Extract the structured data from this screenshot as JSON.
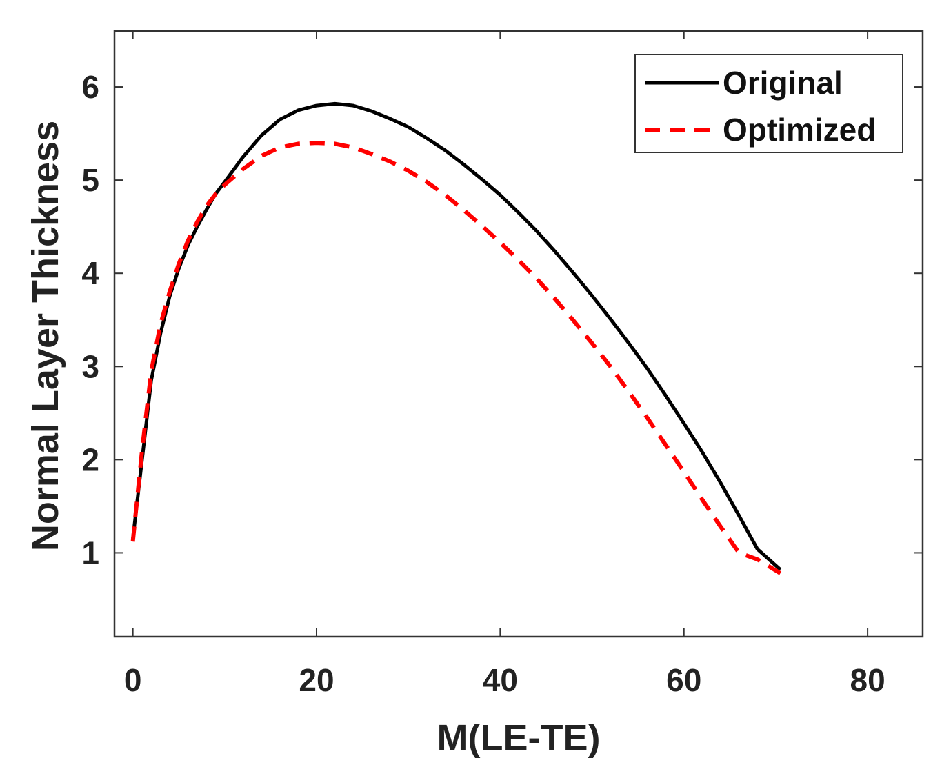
{
  "chart_data": {
    "type": "line",
    "title": "",
    "xlabel": "M(LE-TE)",
    "ylabel": "Normal Layer Thickness",
    "xlim": [
      -2,
      86
    ],
    "ylim": [
      0.1,
      6.6
    ],
    "xticks": [
      0,
      20,
      40,
      60,
      80
    ],
    "yticks": [
      1,
      2,
      3,
      4,
      5,
      6
    ],
    "xtick_labels": [
      "0",
      "20",
      "40",
      "60",
      "80"
    ],
    "ytick_labels": [
      "1",
      "2",
      "3",
      "4",
      "5",
      "6"
    ],
    "grid": false,
    "legend_position": "top-right",
    "series": [
      {
        "name": "Original",
        "color": "#000000",
        "style": "solid",
        "x": [
          0,
          1,
          2,
          3,
          4,
          5,
          6,
          7,
          8,
          9,
          10,
          12,
          14,
          16,
          18,
          20,
          22,
          24,
          26,
          28,
          30,
          32,
          34,
          36,
          38,
          40,
          42,
          44,
          46,
          48,
          50,
          52,
          54,
          56,
          58,
          60,
          62,
          64,
          66,
          68,
          70.5
        ],
        "y": [
          1.15,
          2.0,
          2.85,
          3.35,
          3.75,
          4.05,
          4.3,
          4.5,
          4.68,
          4.85,
          4.98,
          5.25,
          5.48,
          5.65,
          5.75,
          5.8,
          5.82,
          5.8,
          5.74,
          5.66,
          5.57,
          5.45,
          5.32,
          5.17,
          5.01,
          4.84,
          4.65,
          4.45,
          4.23,
          4.0,
          3.76,
          3.51,
          3.25,
          2.98,
          2.69,
          2.39,
          2.08,
          1.75,
          1.4,
          1.04,
          0.82
        ]
      },
      {
        "name": "Optimized",
        "color": "#ff0000",
        "style": "dashed",
        "x": [
          0,
          1,
          2,
          3,
          4,
          5,
          6,
          7,
          8,
          9,
          10,
          12,
          14,
          16,
          18,
          20,
          22,
          24,
          26,
          28,
          30,
          32,
          34,
          36,
          38,
          40,
          42,
          44,
          46,
          48,
          50,
          52,
          54,
          56,
          58,
          60,
          62,
          64,
          66,
          68,
          70.5
        ],
        "y": [
          1.12,
          2.1,
          2.95,
          3.45,
          3.8,
          4.1,
          4.35,
          4.55,
          4.72,
          4.85,
          4.95,
          5.12,
          5.26,
          5.35,
          5.39,
          5.4,
          5.39,
          5.35,
          5.28,
          5.2,
          5.1,
          4.98,
          4.84,
          4.68,
          4.51,
          4.33,
          4.14,
          3.94,
          3.72,
          3.49,
          3.25,
          3.0,
          2.73,
          2.45,
          2.16,
          1.87,
          1.57,
          1.28,
          1.0,
          0.93,
          0.78
        ]
      }
    ]
  }
}
